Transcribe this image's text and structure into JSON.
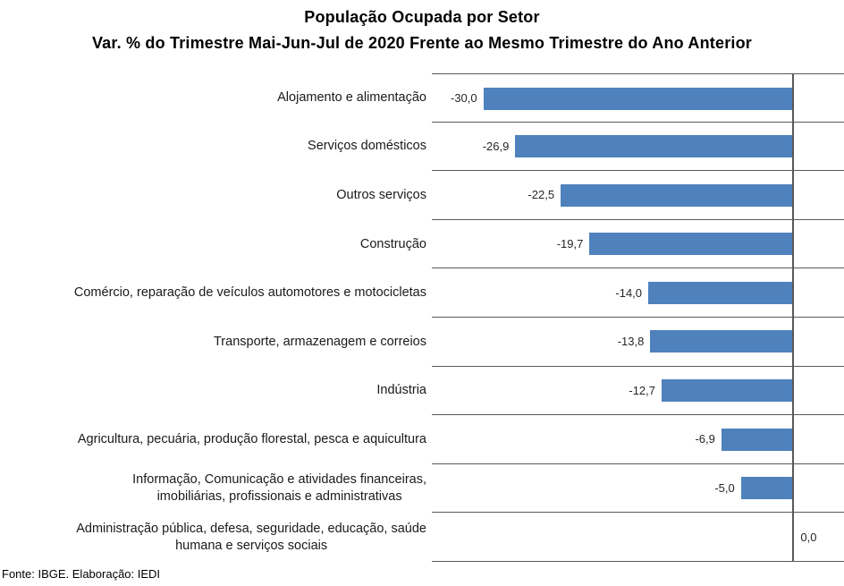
{
  "title": {
    "line1": "População Ocupada por Setor",
    "line2": "Var. % do Trimestre Mai-Jun-Jul de 2020 Frente ao Mesmo Trimestre do Ano Anterior"
  },
  "footer": {
    "text": "Fonte: IBGE. Elaboração: IEDI"
  },
  "chart_data": {
    "type": "bar",
    "orientation": "horizontal",
    "title": "População Ocupada por Setor — Var. % do Trimestre Mai-Jun-Jul de 2020 Frente ao Mesmo Trimestre do Ano Anterior",
    "xlabel": "",
    "ylabel": "",
    "xlim": [
      -35,
      5
    ],
    "legend": "none",
    "grid": "row-separators",
    "bar_color": "#4F81BD",
    "grid_color": "#595959",
    "categories": [
      "Alojamento e alimentação",
      "Serviços domésticos",
      "Outros serviços",
      "Construção",
      "Comércio, reparação de veículos automotores e motocicletas",
      "Transporte, armazenagem e correios",
      "Indústria",
      "Agricultura, pecuária, produção florestal, pesca e aquicultura",
      "Informação, Comunicação e atividades financeiras,\nimobiliárias, profissionais e administrativas",
      "Administração pública, defesa, seguridade, educação, saúde\nhumana e serviços sociais"
    ],
    "values": [
      -30.0,
      -26.9,
      -22.5,
      -19.7,
      -14.0,
      -13.8,
      -12.7,
      -6.9,
      -5.0,
      0.0
    ],
    "value_labels": [
      "-30,0",
      "-26,9",
      "-22,5",
      "-19,7",
      "-14,0",
      "-13,8",
      "-12,7",
      "-6,9",
      "-5,0",
      "0,0"
    ]
  }
}
